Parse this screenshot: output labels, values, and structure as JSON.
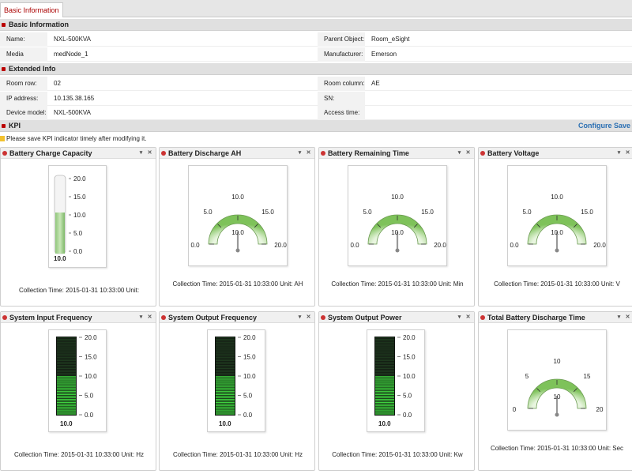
{
  "tab": {
    "label": "Basic Information"
  },
  "basic": {
    "title": "Basic Information",
    "name_label": "Name:",
    "name_value": "NXL-500KVA",
    "parent_label": "Parent Object:",
    "parent_value": "Room_eSight",
    "gateway_label": "Media Gateway:",
    "gateway_value": "medNode_1",
    "manufacturer_label": "Manufacturer:",
    "manufacturer_value": "Emerson"
  },
  "extended": {
    "title": "Extended Info",
    "room_row_label": "Room row:",
    "room_row_value": "02",
    "room_col_label": "Room column:",
    "room_col_value": "AE",
    "ip_label": "IP address:",
    "ip_value": "10.135.38.165",
    "sn_label": "SN:",
    "sn_value": "",
    "model_label": "Device model:",
    "model_value": "NXL-500KVA",
    "access_label": "Access time:",
    "access_value": ""
  },
  "kpi": {
    "title": "KPI",
    "configure": "Configure Save",
    "hint": "Please save KPI indicator timely after modifying it."
  },
  "panels": [
    {
      "title": "Battery Charge Capacity",
      "type": "thermo",
      "ticks": [
        "20.0",
        "15.0",
        "10.0",
        "5.0",
        "0.0"
      ],
      "value_text": "10.0",
      "time_label": "Collection Time:",
      "time": "2015-01-31 10:33:00",
      "unit": "Unit:"
    },
    {
      "title": "Battery Discharge AH",
      "type": "dial",
      "labels": [
        "0.0",
        "5.0",
        "10.0",
        "15.0",
        "20.0"
      ],
      "value_text": "10.0",
      "time_label": "Collection Time:",
      "time": "2015-01-31 10:33:00",
      "unit": "Unit: AH"
    },
    {
      "title": "Battery Remaining Time",
      "type": "dial",
      "labels": [
        "0.0",
        "5.0",
        "10.0",
        "15.0",
        "20.0"
      ],
      "value_text": "10.0",
      "time_label": "Collection Time:",
      "time": "2015-01-31 10:33:00",
      "unit": "Unit: Min"
    },
    {
      "title": "Battery Voltage",
      "type": "dial",
      "labels": [
        "0.0",
        "5.0",
        "10.0",
        "15.0",
        "20.0"
      ],
      "value_text": "10.0",
      "time_label": "Collection Time:",
      "time": "2015-01-31 10:33:00",
      "unit": "Unit: V"
    },
    {
      "title": "System Input Frequency",
      "type": "led",
      "ticks": [
        "20.0",
        "15.0",
        "10.0",
        "5.0",
        "0.0"
      ],
      "value_text": "10.0",
      "time_label": "Collection Time:",
      "time": "2015-01-31 10:33:00",
      "unit": "Unit: Hz"
    },
    {
      "title": "System Output Frequency",
      "type": "led",
      "ticks": [
        "20.0",
        "15.0",
        "10.0",
        "5.0",
        "0.0"
      ],
      "value_text": "10.0",
      "time_label": "Collection Time:",
      "time": "2015-01-31 10:33:00",
      "unit": "Unit: Hz"
    },
    {
      "title": "System Output Power",
      "type": "led",
      "ticks": [
        "20.0",
        "15.0",
        "10.0",
        "5.0",
        "0.0"
      ],
      "value_text": "10.0",
      "time_label": "Collection Time:",
      "time": "2015-01-31 10:33:00",
      "unit": "Unit: Kw"
    },
    {
      "title": "Total Battery Discharge Time",
      "type": "dial",
      "labels": [
        "0",
        "5",
        "10",
        "15",
        "20"
      ],
      "value_text": "10",
      "time_label": "Collection Time:",
      "time": "2015-01-31 10:33:00",
      "unit": "Unit: Sec"
    }
  ],
  "colors": {
    "accent": "#2a6fb3",
    "gauge_green": "#7ec25a",
    "led_green": "#3ed23e"
  }
}
